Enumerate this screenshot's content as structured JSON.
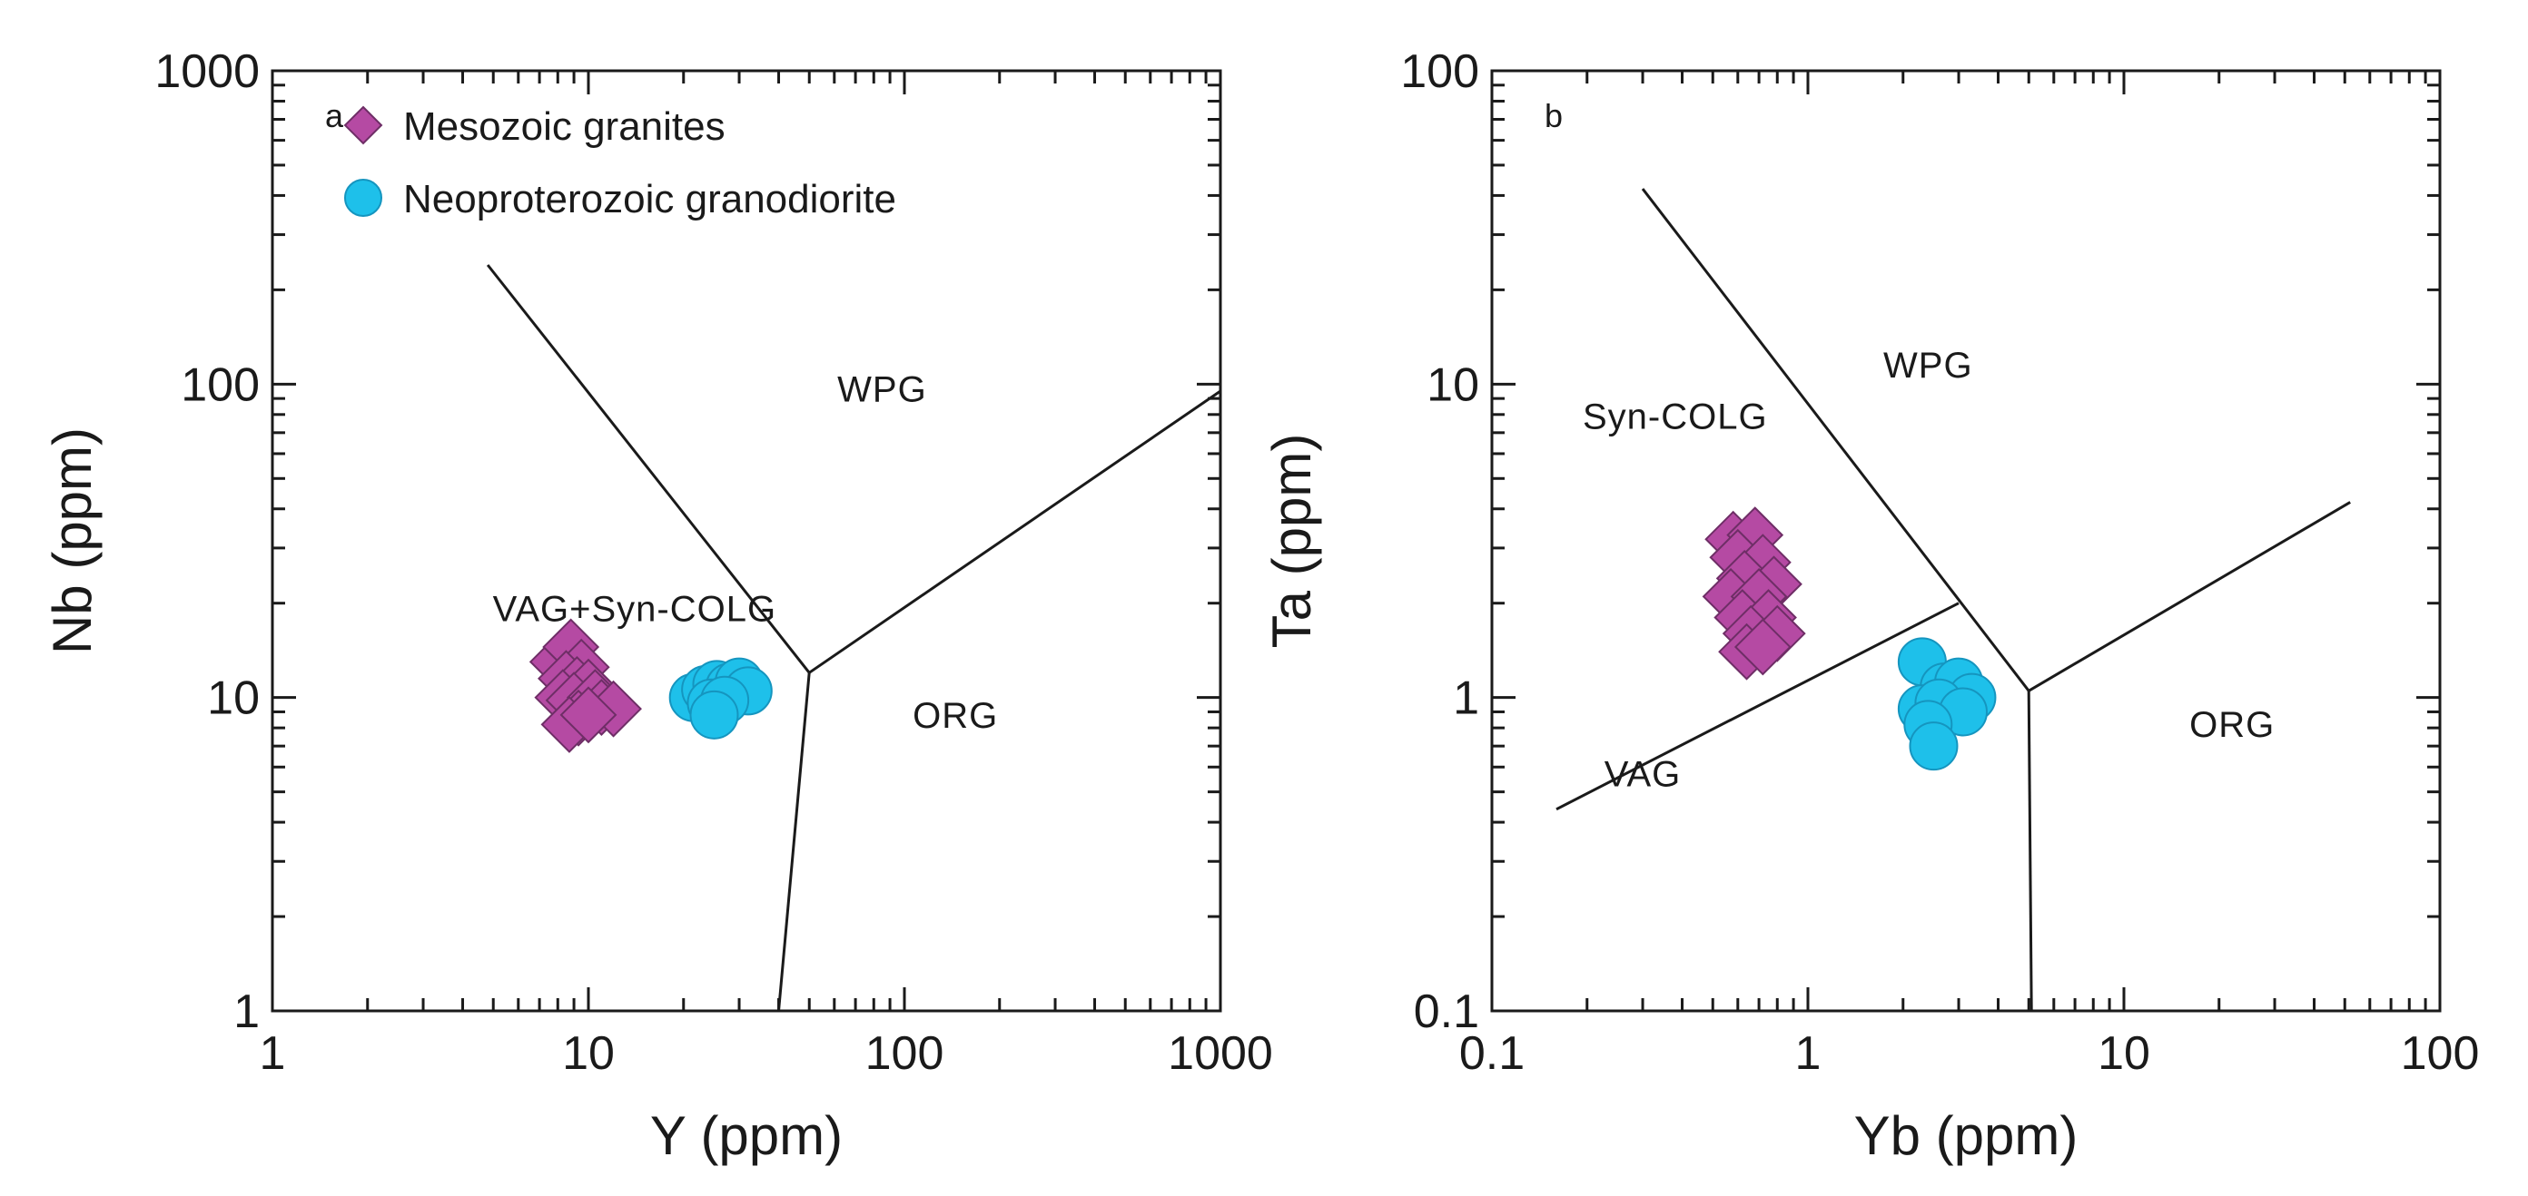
{
  "chart_data": [
    {
      "type": "scatter",
      "panel_label": "a",
      "xlabel": "Y (ppm)",
      "ylabel": "Nb (ppm)",
      "xscale": "log",
      "yscale": "log",
      "xlim": [
        1,
        1000
      ],
      "ylim": [
        1,
        1000
      ],
      "xticks": [
        "1",
        "10",
        "100",
        "1000"
      ],
      "yticks": [
        "1",
        "10",
        "100",
        "1000"
      ],
      "legend_position": "top-left",
      "fields": [
        {
          "label": "WPG",
          "x": 85,
          "y": 88
        },
        {
          "label": "VAG+Syn-COLG",
          "x": 14,
          "y": 17.5
        },
        {
          "label": "ORG",
          "x": 145,
          "y": 8
        }
      ],
      "boundaries": [
        {
          "points": [
            [
              4.8,
              240
            ],
            [
              50,
              12
            ]
          ]
        },
        {
          "points": [
            [
              50,
              12
            ],
            [
              1000,
              95
            ]
          ]
        },
        {
          "points": [
            [
              50,
              12
            ],
            [
              40,
              1
            ]
          ]
        }
      ],
      "series": [
        {
          "name": "Mesozoic granites",
          "marker": "diamond",
          "color": "#b54aa3",
          "points": [
            [
              8.0,
              13.0
            ],
            [
              8.8,
              14.5
            ],
            [
              9.5,
              12.5
            ],
            [
              8.5,
              11.5
            ],
            [
              9.2,
              11.0
            ],
            [
              10.0,
              10.8
            ],
            [
              8.3,
              10.0
            ],
            [
              9.0,
              9.8
            ],
            [
              10.5,
              10.0
            ],
            [
              11.0,
              9.3
            ],
            [
              9.3,
              8.6
            ],
            [
              8.7,
              8.2
            ],
            [
              12.0,
              9.2
            ],
            [
              10.0,
              8.8
            ]
          ]
        },
        {
          "name": "Neoproterozoic granodiorite",
          "marker": "circle",
          "color": "#1ec0ea",
          "points": [
            [
              21.5,
              10.0
            ],
            [
              23.5,
              10.6
            ],
            [
              25.5,
              11.0
            ],
            [
              28.0,
              10.8
            ],
            [
              30.0,
              11.2
            ],
            [
              32.0,
              10.5
            ],
            [
              24.5,
              9.6
            ],
            [
              27.0,
              9.8
            ],
            [
              25.0,
              8.8
            ]
          ]
        }
      ]
    },
    {
      "type": "scatter",
      "panel_label": "b",
      "xlabel": "Yb (ppm)",
      "ylabel": "Ta (ppm)",
      "xscale": "log",
      "yscale": "log",
      "xlim": [
        0.1,
        100
      ],
      "ylim": [
        0.1,
        100
      ],
      "xticks": [
        "0.1",
        "1",
        "10",
        "100"
      ],
      "yticks": [
        "0.1",
        "1",
        "10",
        "100"
      ],
      "fields": [
        {
          "label": "WPG",
          "x": 2.4,
          "y": 10.5
        },
        {
          "label": "Syn-COLG",
          "x": 0.38,
          "y": 7.2
        },
        {
          "label": "VAG",
          "x": 0.3,
          "y": 0.52
        },
        {
          "label": "ORG",
          "x": 22,
          "y": 0.75
        }
      ],
      "boundaries": [
        {
          "points": [
            [
              0.3,
              42
            ],
            [
              5,
              1.05
            ]
          ]
        },
        {
          "points": [
            [
              0.16,
              0.44
            ],
            [
              3,
              2
            ]
          ]
        },
        {
          "points": [
            [
              5,
              1.05
            ],
            [
              52,
              4.2
            ]
          ]
        },
        {
          "points": [
            [
              5,
              1.05
            ],
            [
              5.1,
              0.1
            ]
          ]
        }
      ],
      "series": [
        {
          "name": "Mesozoic granites",
          "marker": "diamond",
          "color": "#b54aa3",
          "points": [
            [
              0.58,
              3.2
            ],
            [
              0.68,
              3.3
            ],
            [
              0.6,
              2.8
            ],
            [
              0.72,
              2.7
            ],
            [
              0.63,
              2.4
            ],
            [
              0.78,
              2.3
            ],
            [
              0.57,
              2.1
            ],
            [
              0.7,
              2.1
            ],
            [
              0.62,
              1.8
            ],
            [
              0.75,
              1.8
            ],
            [
              0.66,
              1.6
            ],
            [
              0.8,
              1.6
            ],
            [
              0.64,
              1.4
            ],
            [
              0.72,
              1.45
            ]
          ]
        },
        {
          "name": "Neoproterozoic granodiorite",
          "marker": "circle",
          "color": "#1ec0ea",
          "points": [
            [
              2.3,
              1.3
            ],
            [
              2.7,
              1.08
            ],
            [
              3.0,
              1.12
            ],
            [
              3.3,
              1.0
            ],
            [
              2.3,
              0.92
            ],
            [
              2.6,
              0.96
            ],
            [
              3.1,
              0.9
            ],
            [
              2.4,
              0.82
            ],
            [
              2.5,
              0.7
            ]
          ]
        }
      ]
    }
  ]
}
